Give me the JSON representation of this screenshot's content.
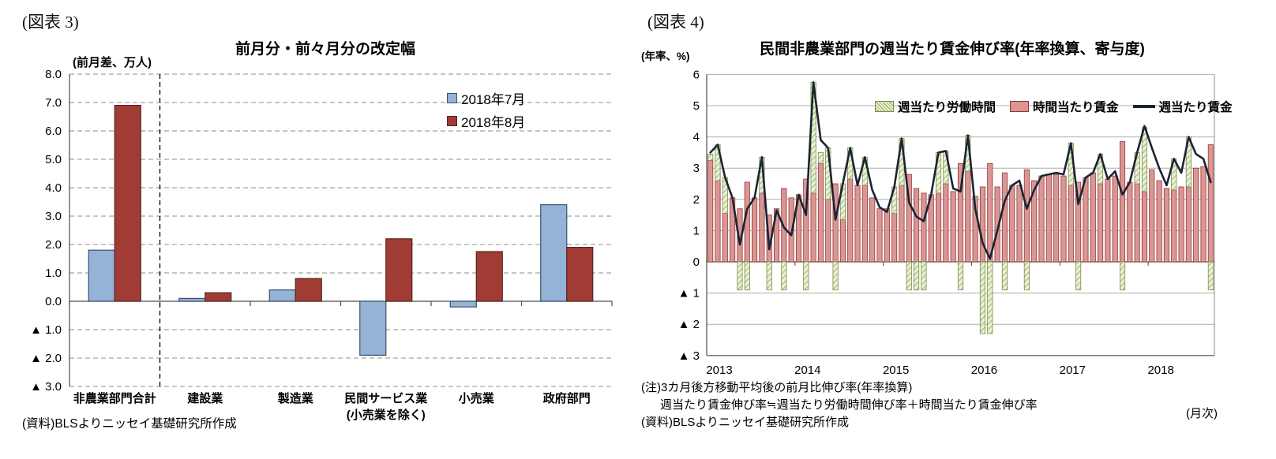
{
  "figure3": {
    "tag": "(図表 3)",
    "unit_label": "(前月差、万人)",
    "title": "前月分・前々月分の改定幅",
    "source": "(資料)BLSよりニッセイ基礎研究所作成",
    "legend": {
      "july": "2018年7月",
      "august": "2018年8月"
    }
  },
  "figure4": {
    "tag": "(図表 4)",
    "unit_label": "(年率、%)",
    "title": "民間非農業部門の週当たり賃金伸び率(年率換算、寄与度)",
    "legend": {
      "hours": "週当たり労働時間",
      "hourly": "時間当たり賃金",
      "weekly": "週当たり賃金"
    },
    "notes": [
      "(注)3カ月後方移動平均後の前月比伸び率(年率換算)",
      "週当たり賃金伸び率≒週当たり労働時間伸び率＋時間当たり賃金伸び率",
      "(資料)BLSよりニッセイ基礎研究所作成"
    ],
    "axis_note": "(月次)"
  },
  "chart_data": [
    {
      "type": "bar",
      "title": "前月分・前々月分の改定幅",
      "unit": "(前月差、万人)",
      "categories": [
        [
          "非農業部門合計"
        ],
        [
          "建設業"
        ],
        [
          "製造業"
        ],
        [
          "民間サービス業",
          "(小売業を除く)"
        ],
        [
          "小売業"
        ],
        [
          "政府部門"
        ]
      ],
      "series": [
        {
          "name": "2018年7月",
          "color": "#95B3D7",
          "border": "#385070",
          "values": [
            1.8,
            0.1,
            0.4,
            -1.9,
            -0.2,
            3.4
          ]
        },
        {
          "name": "2018年8月",
          "color": "#A13C34",
          "border": "#5A2422",
          "values": [
            6.9,
            0.3,
            0.8,
            2.2,
            1.75,
            1.9
          ]
        }
      ],
      "ylim": [
        -3,
        8
      ],
      "ytick": 1,
      "negative_marker": "▲",
      "grid": "dashed",
      "separator_after_category_index": 0
    },
    {
      "type": "bar+line",
      "title": "民間非農業部門の週当たり賃金伸び率(年率換算、寄与度)",
      "unit": "(年率、%)",
      "x_years": [
        "2013",
        "2014",
        "2015",
        "2016",
        "2017",
        "2018"
      ],
      "months_start": "2013-01",
      "months_end": "2018-09",
      "x_axis_note": "(月次)",
      "ylim": [
        -3,
        6
      ],
      "ytick": 1,
      "negative_marker": "▲",
      "grid": "solid",
      "series": [
        {
          "name": "週当たり労働時間",
          "type": "bar",
          "stacked_on": "時間当たり賃金",
          "color": "#E9F0D8",
          "hatch": "#90A551",
          "border": "#7A8F3F",
          "values": [
            0.2,
            1.15,
            1.15,
            0,
            -0.9,
            -0.9,
            0,
            1.15,
            -0.9,
            0,
            -0.9,
            0,
            0,
            -0.9,
            3.55,
            0.35,
            1.65,
            -0.9,
            1.15,
            1.0,
            0,
            0.9,
            0,
            0,
            0,
            0.85,
            1.5,
            -0.9,
            -0.9,
            -0.9,
            0,
            1.3,
            1.05,
            0,
            -0.9,
            1.15,
            0,
            -2.3,
            -2.3,
            0,
            -0.9,
            0,
            0,
            -0.9,
            0,
            0,
            0,
            0,
            0,
            1.35,
            -0.9,
            0,
            0,
            0.95,
            0,
            0,
            -0.9,
            0,
            1.0,
            2.05,
            0,
            0,
            0,
            1.0,
            0,
            1.6,
            0,
            0,
            -0.9
          ]
        },
        {
          "name": "時間当たり賃金",
          "type": "bar",
          "color": "#D99694",
          "border": "#963634",
          "values": [
            3.25,
            2.6,
            1.55,
            2.05,
            1.7,
            2.55,
            2.05,
            2.2,
            1.5,
            1.7,
            2.35,
            2.05,
            2.15,
            2.65,
            2.2,
            3.15,
            2.0,
            2.5,
            1.35,
            2.65,
            2.45,
            2.45,
            2.05,
            1.7,
            1.7,
            1.55,
            2.45,
            2.8,
            2.35,
            2.2,
            2.15,
            2.2,
            2.5,
            2.25,
            3.15,
            2.9,
            2.1,
            2.4,
            3.15,
            2.4,
            2.85,
            2.45,
            2.45,
            2.95,
            2.6,
            2.75,
            2.8,
            2.8,
            2.75,
            2.45,
            2.55,
            2.7,
            2.85,
            2.5,
            2.65,
            2.75,
            3.85,
            2.55,
            2.5,
            2.25,
            2.95,
            2.6,
            2.35,
            2.3,
            2.4,
            2.4,
            3.0,
            3.05,
            3.75
          ]
        },
        {
          "name": "週当たり賃金",
          "type": "line",
          "color": "#1A2433",
          "values": [
            3.5,
            3.75,
            2.7,
            2.05,
            0.55,
            1.7,
            2.05,
            3.35,
            0.4,
            1.65,
            1.1,
            0.85,
            2.15,
            1.5,
            5.75,
            3.9,
            3.65,
            1.35,
            2.5,
            3.65,
            2.45,
            3.35,
            2.3,
            1.75,
            1.6,
            2.4,
            3.95,
            1.9,
            1.45,
            1.3,
            2.15,
            3.5,
            3.55,
            2.35,
            2.25,
            4.05,
            1.7,
            0.6,
            0.1,
            1.0,
            1.95,
            2.45,
            2.6,
            1.7,
            2.3,
            2.75,
            2.8,
            2.85,
            2.8,
            3.8,
            1.85,
            2.7,
            2.85,
            3.45,
            2.65,
            2.9,
            2.15,
            2.55,
            3.5,
            4.35,
            3.65,
            3.0,
            2.45,
            3.3,
            2.85,
            4.0,
            3.45,
            3.3,
            2.55
          ]
        }
      ]
    }
  ]
}
